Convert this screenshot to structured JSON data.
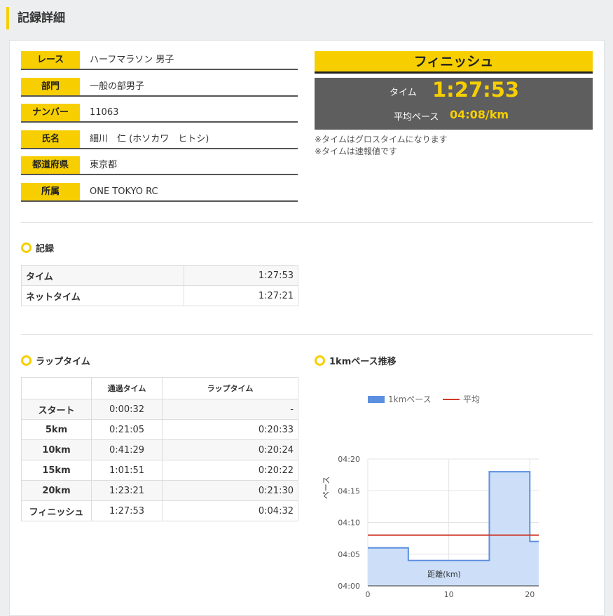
{
  "page": {
    "title": "記録詳細"
  },
  "info": [
    {
      "label": "レース",
      "value": "ハーフマラソン 男子"
    },
    {
      "label": "部門",
      "value": "一般の部男子"
    },
    {
      "label": "ナンバー",
      "value": "11063"
    },
    {
      "label": "氏名",
      "value": "細川　仁 (ホソカワ　ヒトシ)"
    },
    {
      "label": "都道府県",
      "value": "東京都"
    },
    {
      "label": "所属",
      "value": "ONE TOKYO RC"
    }
  ],
  "finish": {
    "heading": "フィニッシュ",
    "time_label": "タイム",
    "time_value": "1:27:53",
    "pace_label": "平均ペース",
    "pace_value": "04:08/km",
    "notes": [
      "※タイムはグロスタイムになります",
      "※タイムは速報値です"
    ]
  },
  "record": {
    "title": "記録",
    "rows": [
      {
        "label": "タイム",
        "value": "1:27:53"
      },
      {
        "label": "ネットタイム",
        "value": "1:27:21"
      }
    ]
  },
  "laps": {
    "title": "ラップタイム",
    "headers": [
      "",
      "通過タイム",
      "ラップタイム"
    ],
    "rows": [
      {
        "point": "スタート",
        "split": "0:00:32",
        "lap": "-"
      },
      {
        "point": "5km",
        "split": "0:21:05",
        "lap": "0:20:33"
      },
      {
        "point": "10km",
        "split": "0:41:29",
        "lap": "0:20:24"
      },
      {
        "point": "15km",
        "split": "1:01:51",
        "lap": "0:20:22"
      },
      {
        "point": "20km",
        "split": "1:23:21",
        "lap": "0:21:30"
      },
      {
        "point": "フィニッシュ",
        "split": "1:27:53",
        "lap": "0:04:32"
      }
    ]
  },
  "pace_chart": {
    "title": "1kmペース推移",
    "legend": [
      "1kmペース",
      "平均"
    ],
    "ylabel": "ペース",
    "xlabel": "距離(km)"
  },
  "chart_data": {
    "type": "area",
    "title": "1kmペース推移",
    "xlabel": "距離(km)",
    "ylabel": "ペース",
    "x_ticks": [
      "0",
      "10",
      "20"
    ],
    "y_ticks": [
      "04:00",
      "04:05",
      "04:10",
      "04:15",
      "04:20"
    ],
    "xlim": [
      0,
      21.1
    ],
    "ylim_seconds": [
      240,
      260
    ],
    "series": [
      {
        "name": "1kmペース",
        "color": "#5b8fe0",
        "steps": [
          {
            "x_start": 0,
            "x_end": 5,
            "pace": "04:06",
            "seconds": 246
          },
          {
            "x_start": 5,
            "x_end": 15,
            "pace": "04:04",
            "seconds": 244
          },
          {
            "x_start": 15,
            "x_end": 20,
            "pace": "04:18",
            "seconds": 258
          },
          {
            "x_start": 20,
            "x_end": 21.1,
            "pace": "04:07",
            "seconds": 247
          }
        ]
      },
      {
        "name": "平均",
        "color": "#d0392b",
        "pace": "04:08",
        "seconds": 248
      }
    ],
    "grid": true,
    "legend_position": "top"
  },
  "colors": {
    "accent": "#f7cf00",
    "panel": "#5e5e5e"
  }
}
